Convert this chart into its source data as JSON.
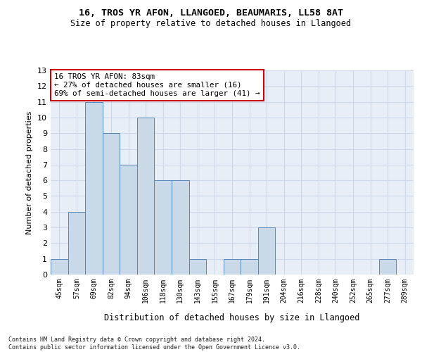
{
  "title1": "16, TROS YR AFON, LLANGOED, BEAUMARIS, LL58 8AT",
  "title2": "Size of property relative to detached houses in Llangoed",
  "xlabel": "Distribution of detached houses by size in Llangoed",
  "ylabel": "Number of detached properties",
  "categories": [
    "45sqm",
    "57sqm",
    "69sqm",
    "82sqm",
    "94sqm",
    "106sqm",
    "118sqm",
    "130sqm",
    "143sqm",
    "155sqm",
    "167sqm",
    "179sqm",
    "191sqm",
    "204sqm",
    "216sqm",
    "228sqm",
    "240sqm",
    "252sqm",
    "265sqm",
    "277sqm",
    "289sqm"
  ],
  "values": [
    1,
    4,
    11,
    9,
    7,
    10,
    6,
    6,
    1,
    0,
    1,
    1,
    3,
    0,
    0,
    0,
    0,
    0,
    0,
    1,
    0
  ],
  "bar_color": "#c9d9e8",
  "bar_edge_color": "#5588bb",
  "grid_color": "#cdd8ea",
  "background_color": "#e8eef6",
  "annotation_text": "16 TROS YR AFON: 83sqm\n← 27% of detached houses are smaller (16)\n69% of semi-detached houses are larger (41) →",
  "annotation_box_facecolor": "white",
  "annotation_box_edgecolor": "#cc0000",
  "footer": "Contains HM Land Registry data © Crown copyright and database right 2024.\nContains public sector information licensed under the Open Government Licence v3.0.",
  "ylim": [
    0,
    13
  ],
  "yticks": [
    0,
    1,
    2,
    3,
    4,
    5,
    6,
    7,
    8,
    9,
    10,
    11,
    12,
    13
  ]
}
